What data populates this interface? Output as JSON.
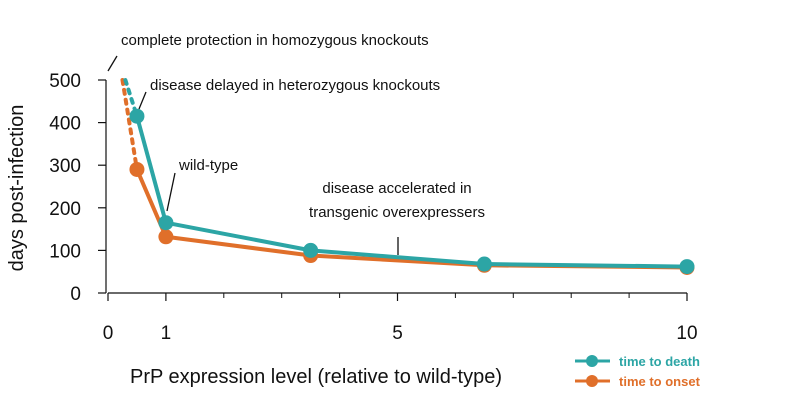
{
  "chart_data": {
    "type": "line",
    "xlabel": "PrP expression level (relative to wild-type)",
    "ylabel": "days post-infection",
    "xlim": [
      0,
      10
    ],
    "ylim": [
      0,
      500
    ],
    "xticks_major": [
      0,
      1,
      5,
      10
    ],
    "xticks_minor": [
      2,
      3,
      4,
      6,
      7,
      8,
      9
    ],
    "yticks": [
      0,
      100,
      200,
      300,
      400,
      500
    ],
    "grid": false,
    "legend_position": "bottom-right",
    "series": [
      {
        "name": "time to death",
        "color": "#2ca5a5",
        "points": [
          [
            0.5,
            415
          ],
          [
            1,
            165
          ],
          [
            3.5,
            100
          ],
          [
            6.5,
            68
          ],
          [
            10,
            62
          ]
        ],
        "dashed_lead_in": [
          [
            0.3,
            500
          ],
          [
            0.5,
            415
          ]
        ]
      },
      {
        "name": "time to onset",
        "color": "#e06f2a",
        "points": [
          [
            0.5,
            290
          ],
          [
            1,
            132
          ],
          [
            3.5,
            88
          ],
          [
            6.5,
            65
          ],
          [
            10,
            60
          ]
        ],
        "dashed_lead_in": [
          [
            0.25,
            500
          ],
          [
            0.5,
            290
          ]
        ]
      }
    ],
    "annotations": [
      {
        "text": "complete protection in homozygous knockouts"
      },
      {
        "text": "disease delayed in heterozygous knockouts"
      },
      {
        "text": "wild-type"
      },
      {
        "text": "disease accelerated in"
      },
      {
        "text": "transgenic overexpressers"
      }
    ]
  }
}
